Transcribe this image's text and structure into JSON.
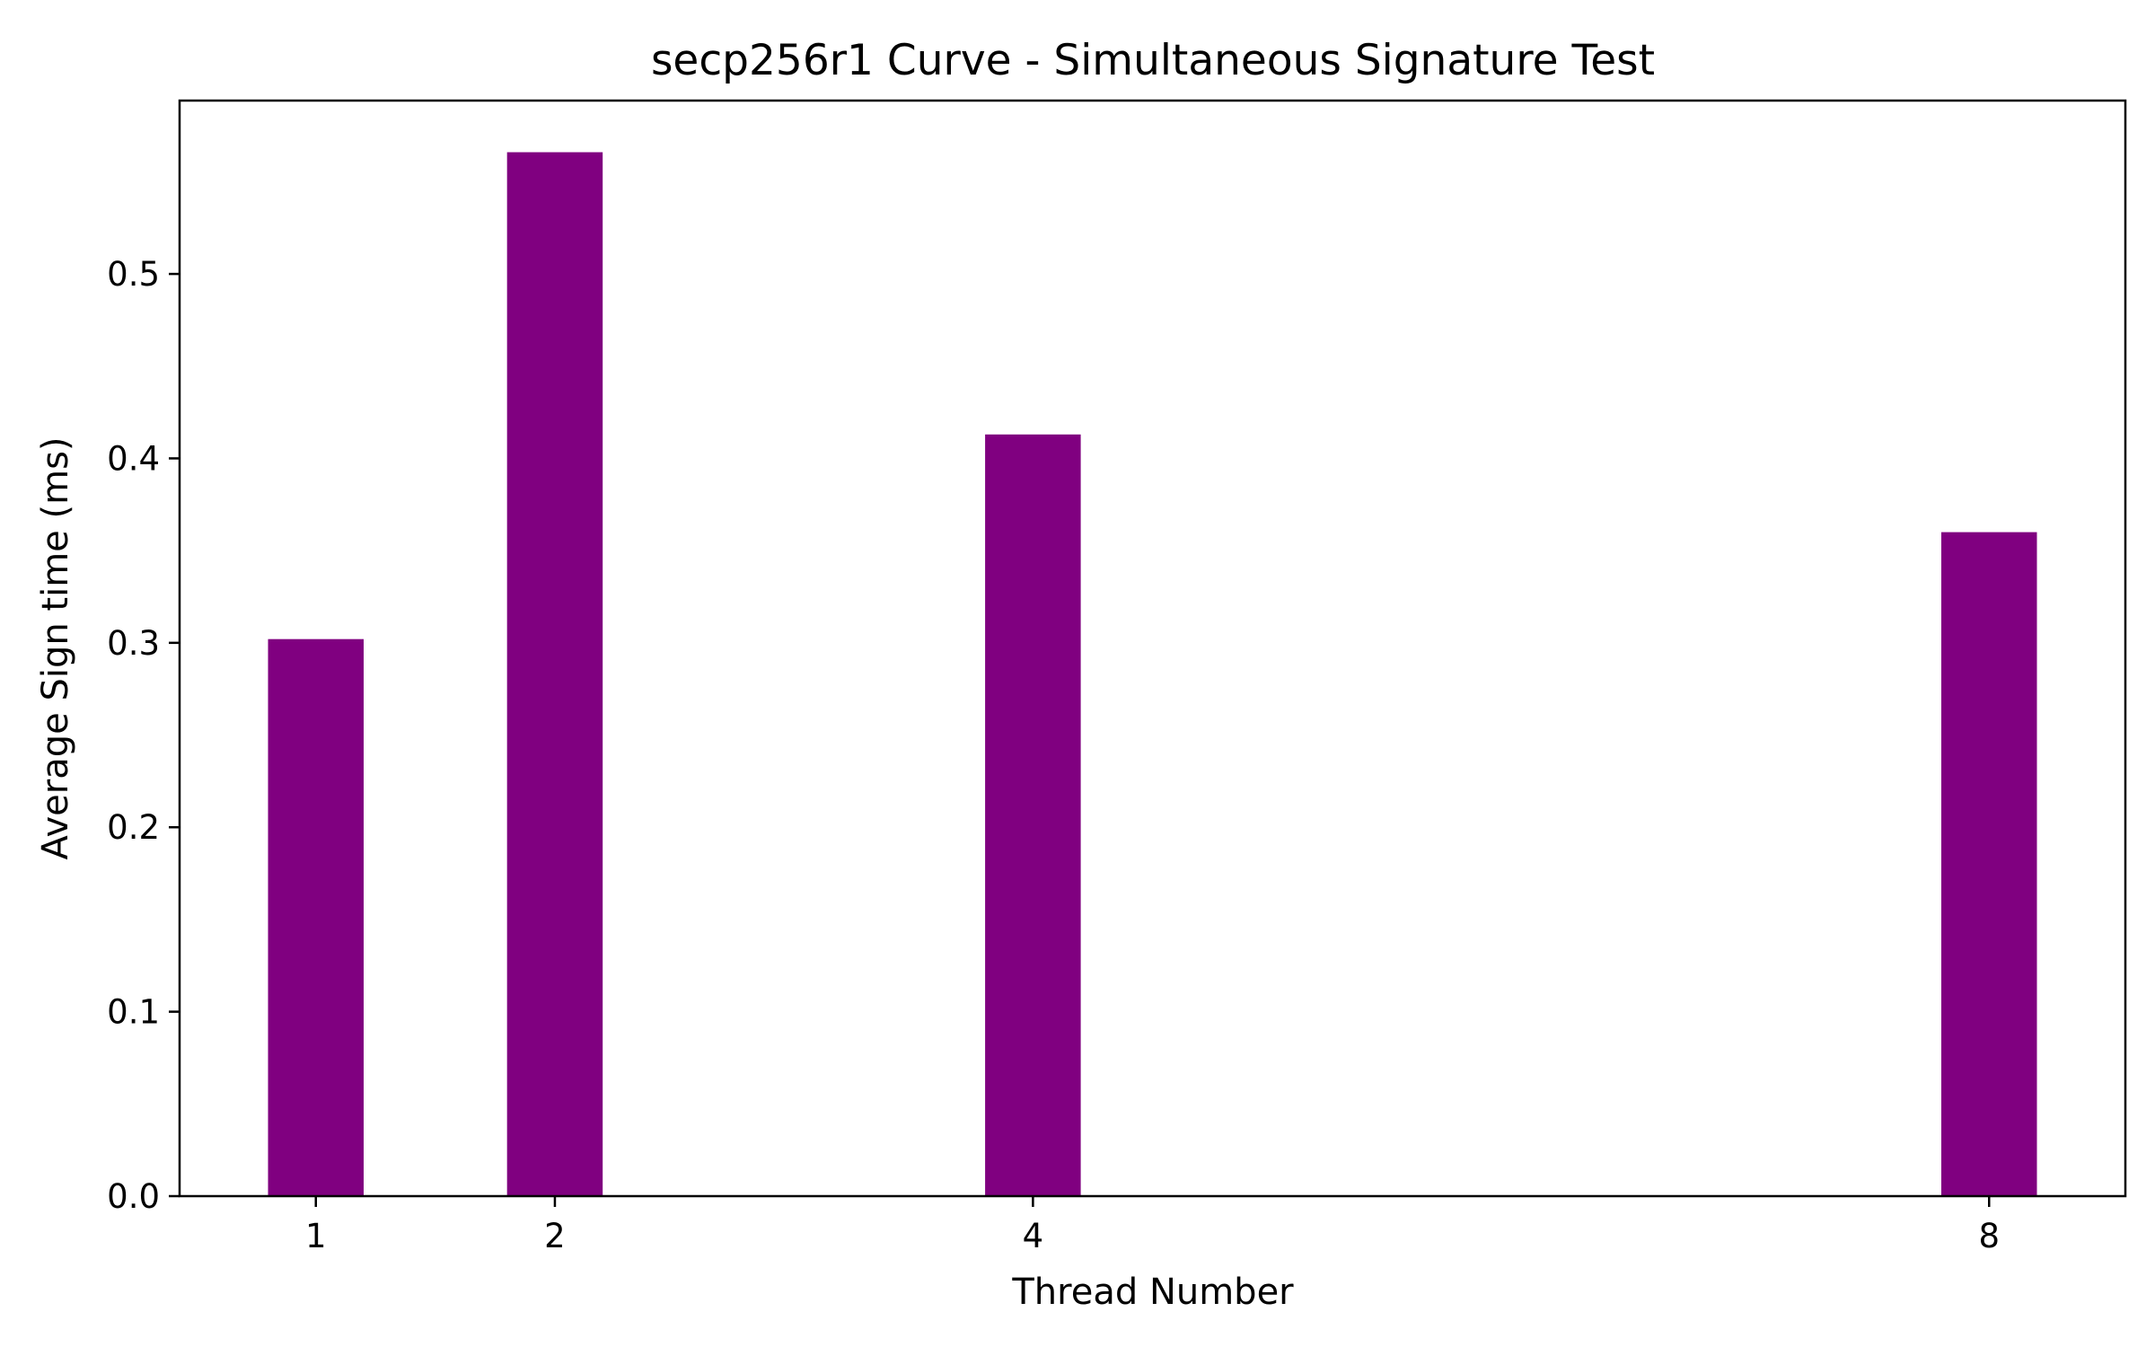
{
  "chart_data": {
    "type": "bar",
    "title": "secp256r1 Curve - Simultaneous Signature Test",
    "xlabel": "Thread Number",
    "ylabel": "Average Sign time (ms)",
    "categories": [
      "1",
      "2",
      "4",
      "8"
    ],
    "x": [
      1,
      2,
      4,
      8
    ],
    "values": [
      0.302,
      0.566,
      0.413,
      0.36
    ],
    "xlim": [
      0.43,
      8.57
    ],
    "ylim": [
      0,
      0.594
    ],
    "yticks": [
      0.0,
      0.1,
      0.2,
      0.3,
      0.4,
      0.5
    ],
    "ytick_labels": [
      "0.0",
      "0.1",
      "0.2",
      "0.3",
      "0.4",
      "0.5"
    ],
    "bar_width": 0.4,
    "bar_color": "#800080",
    "grid": false,
    "legend": "none"
  }
}
